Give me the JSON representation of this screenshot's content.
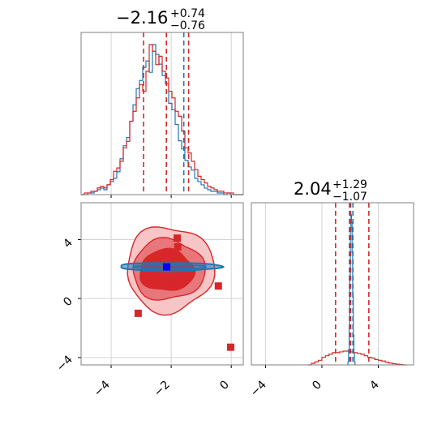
{
  "colors": {
    "blue": "#1f77b4",
    "red": "#d62728",
    "grid": "#d3d3d3",
    "axes": "#7f7f7f"
  },
  "chart_data": {
    "type": "corner",
    "parameters": [
      "p0",
      "p1"
    ],
    "p0": {
      "title_main": "−2.16",
      "title_sup": "+0.74",
      "title_sub": "−0.76",
      "xlim": [
        -5.0,
        0.4
      ],
      "xticks": [
        -4,
        -2,
        0
      ],
      "xtick_labels": [
        "−4",
        "−2",
        "0"
      ],
      "hist_blue": {
        "range": [
          -5.0,
          0.4
        ],
        "bins": 50,
        "counts": [
          0.0,
          0.0,
          0.01,
          0.01,
          0.02,
          0.03,
          0.04,
          0.03,
          0.06,
          0.08,
          0.1,
          0.14,
          0.22,
          0.3,
          0.35,
          0.45,
          0.55,
          0.65,
          0.7,
          0.78,
          0.82,
          0.75,
          0.92,
          0.86,
          0.8,
          0.73,
          0.68,
          0.56,
          0.52,
          0.43,
          0.33,
          0.28,
          0.21,
          0.17,
          0.15,
          0.1,
          0.08,
          0.06,
          0.04,
          0.03,
          0.02,
          0.02,
          0.01,
          0.01,
          0.0,
          0.01,
          0.0,
          0.0,
          0.0,
          0.0
        ]
      },
      "hist_red": {
        "range": [
          -5.0,
          0.4
        ],
        "bins": 50,
        "counts": [
          0.0,
          0.01,
          0.01,
          0.02,
          0.02,
          0.04,
          0.05,
          0.04,
          0.06,
          0.09,
          0.14,
          0.16,
          0.2,
          0.28,
          0.32,
          0.44,
          0.5,
          0.58,
          0.66,
          0.62,
          0.74,
          0.9,
          0.86,
          0.78,
          0.83,
          0.74,
          0.7,
          0.62,
          0.58,
          0.5,
          0.47,
          0.38,
          0.28,
          0.25,
          0.2,
          0.15,
          0.11,
          0.09,
          0.07,
          0.05,
          0.04,
          0.03,
          0.02,
          0.02,
          0.01,
          0.01,
          0.01,
          0.0,
          0.0,
          0.0
        ]
      },
      "quantiles_red": [
        -2.92,
        -2.16,
        -1.42
      ],
      "quantiles_blue": [
        -1.58
      ]
    },
    "p1": {
      "title_main": "2.04",
      "title_sup": "+1.29",
      "title_sub": "−1.07",
      "xlim": [
        -5.0,
        6.5
      ],
      "xticks": [
        -4,
        0,
        4
      ],
      "xtick_labels": [
        "−4",
        "0",
        "4"
      ],
      "hist_blue": {
        "range": [
          1.85,
          2.35
        ],
        "bins": 12,
        "counts": [
          0.02,
          0.1,
          0.25,
          0.6,
          0.9,
          1.0,
          0.95,
          0.75,
          0.45,
          0.2,
          0.08,
          0.02
        ]
      },
      "hist_red": {
        "range": [
          -1.0,
          6.0
        ],
        "bins": 28,
        "counts": [
          0.0,
          0.01,
          0.02,
          0.03,
          0.05,
          0.06,
          0.07,
          0.08,
          0.08,
          0.085,
          0.09,
          0.09,
          0.085,
          0.08,
          0.075,
          0.07,
          0.06,
          0.05,
          0.045,
          0.035,
          0.03,
          0.025,
          0.018,
          0.012,
          0.008,
          0.005,
          0.003,
          0.0
        ]
      },
      "quantiles_red": [
        0.97,
        2.04,
        3.33
      ],
      "quantiles_blue": [
        1.95,
        2.2
      ]
    },
    "joint": {
      "xlim": [
        -5.0,
        0.4
      ],
      "ylim": [
        -4.5,
        6.5
      ],
      "xticks": [
        -4,
        -2,
        0
      ],
      "yticks": [
        -4,
        0,
        4
      ],
      "ytick_labels": [
        "−4",
        "0",
        "4"
      ],
      "red_contours": [
        {
          "level": "outer",
          "fill": "#f7c5c6",
          "cx": -2.05,
          "cy": 2.0,
          "rx": 1.45,
          "ry": 2.9
        },
        {
          "level": "middle",
          "fill": "#e8777b",
          "cx": -2.1,
          "cy": 1.95,
          "rx": 1.2,
          "ry": 2.05
        },
        {
          "level": "inner",
          "fill": "#d9262b",
          "cx": -2.15,
          "cy": 1.9,
          "rx": 0.9,
          "ry": 1.4
        }
      ],
      "blue_contour": {
        "cx": -2.05,
        "cy": 2.15,
        "rx": 1.7,
        "ry": 0.28
      },
      "red_points": [
        {
          "x": -1.8,
          "y": 4.1
        },
        {
          "x": -1.78,
          "y": 3.5
        },
        {
          "x": -2.06,
          "y": 1.2
        },
        {
          "x": -0.43,
          "y": 0.85
        },
        {
          "x": -3.1,
          "y": -1.0
        },
        {
          "x": -0.02,
          "y": -3.3
        }
      ],
      "blue_point": {
        "x": -2.15,
        "y": 2.15
      }
    }
  }
}
